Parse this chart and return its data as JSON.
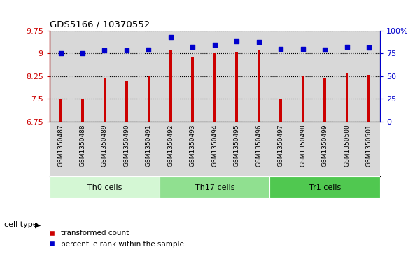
{
  "title": "GDS5166 / 10370552",
  "samples": [
    "GSM1350487",
    "GSM1350488",
    "GSM1350489",
    "GSM1350490",
    "GSM1350491",
    "GSM1350492",
    "GSM1350493",
    "GSM1350494",
    "GSM1350495",
    "GSM1350496",
    "GSM1350497",
    "GSM1350498",
    "GSM1350499",
    "GSM1350500",
    "GSM1350501"
  ],
  "transformed_count": [
    7.48,
    7.51,
    8.17,
    8.09,
    8.25,
    9.09,
    8.86,
    9.0,
    9.06,
    9.09,
    7.5,
    8.27,
    8.18,
    8.35,
    8.28
  ],
  "percentile_rank": [
    75,
    75,
    78,
    78,
    79,
    93,
    82,
    84,
    88,
    87,
    80,
    80,
    79,
    82,
    81
  ],
  "cell_types": [
    {
      "label": "Th0 cells",
      "start": 0,
      "end": 5,
      "color": "#d4f7d4"
    },
    {
      "label": "Th17 cells",
      "start": 5,
      "end": 10,
      "color": "#90e090"
    },
    {
      "label": "Tr1 cells",
      "start": 10,
      "end": 15,
      "color": "#50c850"
    }
  ],
  "ylim_left": [
    6.75,
    9.75
  ],
  "ylim_right": [
    0,
    100
  ],
  "yticks_left": [
    6.75,
    7.5,
    8.25,
    9.0,
    9.75
  ],
  "yticks_right": [
    0,
    25,
    50,
    75,
    100
  ],
  "ytick_labels_left": [
    "6.75",
    "7.5",
    "8.25",
    "9",
    "9.75"
  ],
  "ytick_labels_right": [
    "0",
    "25",
    "50",
    "75",
    "100%"
  ],
  "bar_color": "#cc0000",
  "dot_color": "#0000cc",
  "grid_color": "#000000",
  "bg_color": "#ffffff",
  "col_bg_color": "#d8d8d8",
  "label_transformed": "transformed count",
  "label_percentile": "percentile rank within the sample",
  "cell_type_label": "cell type",
  "left_axis_color": "#cc0000",
  "right_axis_color": "#0000cc"
}
